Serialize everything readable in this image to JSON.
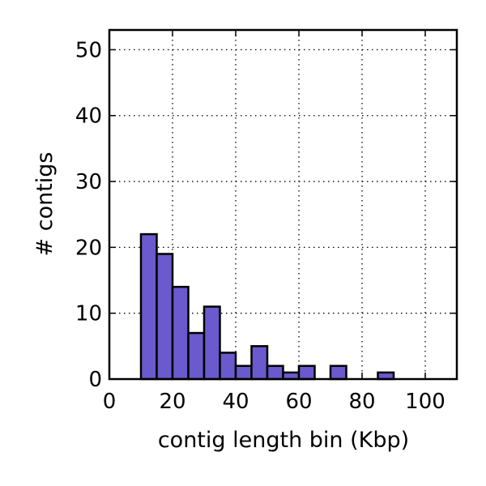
{
  "chart_data": {
    "type": "bar",
    "title": "",
    "xlabel": "contig length bin (Kbp)",
    "ylabel": "# contigs",
    "xlim": [
      0,
      110
    ],
    "ylim": [
      0,
      53
    ],
    "xticks": [
      0,
      20,
      40,
      60,
      80,
      100
    ],
    "yticks": [
      0,
      10,
      20,
      30,
      40,
      50
    ],
    "grid": true,
    "bar_color": "#6a5acd",
    "bin_width": 5,
    "bins": [
      {
        "start": 0,
        "count": 0
      },
      {
        "start": 10,
        "count": 22
      },
      {
        "start": 15,
        "count": 19
      },
      {
        "start": 20,
        "count": 14
      },
      {
        "start": 25,
        "count": 7
      },
      {
        "start": 30,
        "count": 11
      },
      {
        "start": 35,
        "count": 4
      },
      {
        "start": 40,
        "count": 2
      },
      {
        "start": 45,
        "count": 5
      },
      {
        "start": 50,
        "count": 2
      },
      {
        "start": 55,
        "count": 1
      },
      {
        "start": 60,
        "count": 2
      },
      {
        "start": 70,
        "count": 2
      },
      {
        "start": 85,
        "count": 1
      }
    ]
  }
}
